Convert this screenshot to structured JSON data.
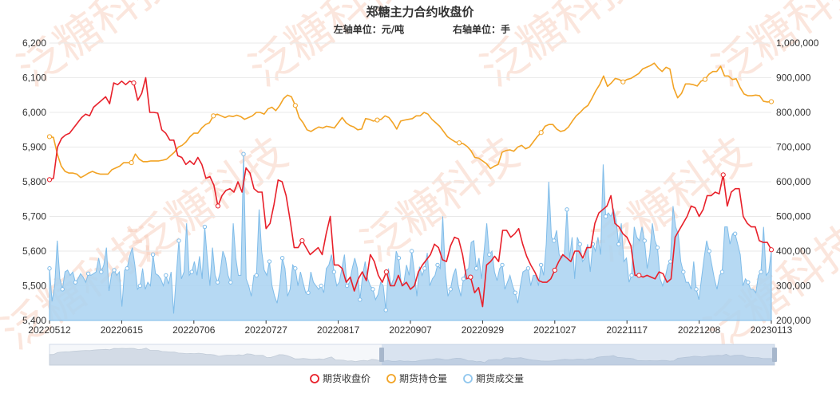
{
  "chart_data": {
    "type": "line",
    "title": "郑糖主力合约收盘价",
    "subtitle_left": "左轴单位：元/吨",
    "subtitle_right": "右轴单位：手",
    "watermark": "泛糖科技",
    "y_left": {
      "min": 5400,
      "max": 6200,
      "ticks": [
        "5,400",
        "5,500",
        "5,600",
        "5,700",
        "5,800",
        "5,900",
        "6,000",
        "6,100",
        "6,200"
      ]
    },
    "y_right": {
      "min": 200000,
      "max": 1000000,
      "ticks": [
        "200,000",
        "300,000",
        "400,000",
        "500,000",
        "600,000",
        "700,000",
        "800,000",
        "900,000",
        "1,000,000"
      ]
    },
    "x_labels": [
      "20220512",
      "20220615",
      "20220706",
      "20220727",
      "20220817",
      "20220907",
      "20220929",
      "20221027",
      "20221117",
      "20221208",
      "20230113"
    ],
    "legend": [
      {
        "name": "期货收盘价",
        "color": "#e8202a"
      },
      {
        "name": "期货持仓量",
        "color": "#f2a324"
      },
      {
        "name": "期货成交量",
        "color": "#8fc6ee"
      }
    ],
    "colors": {
      "price": "#e8202a",
      "oi": "#f2a324",
      "volume_fill": "#a9d2f1",
      "volume_line": "#7fbce9"
    },
    "series": [
      {
        "name": "期货收盘价",
        "axis": "left",
        "values": [
          5806,
          5810,
          5900,
          5925,
          5935,
          5940,
          5955,
          5970,
          5985,
          5995,
          5990,
          6015,
          6025,
          6035,
          6045,
          6025,
          6085,
          6080,
          6090,
          6080,
          6090,
          6085,
          6035,
          6055,
          6100,
          6000,
          6000,
          5998,
          5950,
          5940,
          5920,
          5920,
          5875,
          5870,
          5850,
          5860,
          5850,
          5870,
          5850,
          5810,
          5815,
          5790,
          5730,
          5760,
          5775,
          5780,
          5770,
          5800,
          5770,
          5840,
          5825,
          5780,
          5770,
          5770,
          5665,
          5680,
          5735,
          5805,
          5800,
          5760,
          5690,
          5610,
          5610,
          5630,
          5610,
          5590,
          5600,
          5610,
          5590,
          5650,
          5700,
          5560,
          5560,
          5550,
          5510,
          5525,
          5485,
          5520,
          5540,
          5515,
          5590,
          5570,
          5530,
          5510,
          5540,
          5500,
          5500,
          5530,
          5500,
          5510,
          5490,
          5500,
          5540,
          5560,
          5575,
          5590,
          5620,
          5610,
          5575,
          5570,
          5615,
          5640,
          5635,
          5590,
          5520,
          5525,
          5480,
          5495,
          5440,
          5560,
          5570,
          5585,
          5570,
          5660,
          5660,
          5640,
          5650,
          5665,
          5620,
          5585,
          5560,
          5540,
          5515,
          5510,
          5510,
          5520,
          5545,
          5570,
          5590,
          5580,
          5570,
          5600,
          5600,
          5580,
          5610,
          5610,
          5680,
          5710,
          5720,
          5730,
          5760,
          5680,
          5670,
          5650,
          5640,
          5615,
          5530,
          5530,
          5525,
          5530,
          5525,
          5520,
          5540,
          5535,
          5510,
          5520,
          5640,
          5660,
          5680,
          5700,
          5730,
          5725,
          5700,
          5720,
          5760,
          5760,
          5770,
          5765,
          5820,
          5730,
          5770,
          5780,
          5780,
          5700,
          5680,
          5670,
          5670,
          5630,
          5625,
          5625,
          5604
        ]
      },
      {
        "name": "期货持仓量",
        "axis": "right",
        "values": [
          730000,
          728000,
          680000,
          645000,
          630000,
          625000,
          625000,
          622000,
          612000,
          618000,
          625000,
          630000,
          625000,
          622000,
          622000,
          622000,
          635000,
          640000,
          645000,
          655000,
          655000,
          655000,
          680000,
          665000,
          658000,
          658000,
          660000,
          660000,
          660000,
          662000,
          665000,
          675000,
          685000,
          700000,
          705000,
          715000,
          730000,
          740000,
          740000,
          755000,
          765000,
          770000,
          790000,
          795000,
          790000,
          785000,
          790000,
          788000,
          792000,
          788000,
          780000,
          785000,
          790000,
          800000,
          800000,
          795000,
          810000,
          815000,
          805000,
          820000,
          840000,
          850000,
          845000,
          820000,
          785000,
          770000,
          750000,
          745000,
          752000,
          758000,
          755000,
          760000,
          758000,
          755000,
          770000,
          785000,
          770000,
          762000,
          758000,
          750000,
          752000,
          782000,
          780000,
          775000,
          778000,
          780000,
          790000,
          785000,
          770000,
          752000,
          775000,
          778000,
          780000,
          782000,
          790000,
          790000,
          800000,
          795000,
          780000,
          770000,
          760000,
          745000,
          730000,
          722000,
          715000,
          712000,
          710000,
          702000,
          690000,
          670000,
          668000,
          660000,
          652000,
          638000,
          645000,
          650000,
          685000,
          690000,
          692000,
          688000,
          700000,
          705000,
          695000,
          700000,
          715000,
          730000,
          742000,
          760000,
          765000,
          765000,
          752000,
          745000,
          748000,
          758000,
          775000,
          790000,
          800000,
          812000,
          820000,
          840000,
          862000,
          880000,
          905000,
          875000,
          885000,
          898000,
          895000,
          888000,
          895000,
          898000,
          905000,
          912000,
          925000,
          930000,
          935000,
          942000,
          928000,
          918000,
          930000,
          925000,
          870000,
          842000,
          855000,
          882000,
          882000,
          880000,
          876000,
          890000,
          895000,
          910000,
          918000,
          918000,
          933000,
          905000,
          905000,
          895000,
          897000,
          872000,
          853000,
          848000,
          848000,
          850000,
          848000,
          832000,
          830000,
          831000
        ]
      },
      {
        "name": "期货成交量",
        "axis": "right",
        "values": [
          350000,
          255000,
          300000,
          430000,
          320000,
          290000,
          340000,
          345000,
          330000,
          340000,
          310000,
          320000,
          335000,
          325000,
          310000,
          335000,
          330000,
          335000,
          340000,
          380000,
          340000,
          360000,
          410000,
          285000,
          335000,
          345000,
          330000,
          340000,
          240000,
          345000,
          350000,
          385000,
          410000,
          360000,
          290000,
          300000,
          350000,
          290000,
          310000,
          300000,
          390000,
          335000,
          330000,
          320000,
          300000,
          330000,
          305000,
          340000,
          220000,
          330000,
          430000,
          320000,
          340000,
          480000,
          330000,
          340000,
          370000,
          330000,
          385000,
          320000,
          470000,
          380000,
          300000,
          410000,
          330000,
          310000,
          340000,
          400000,
          380000,
          330000,
          310000,
          480000,
          380000,
          330000,
          330000,
          680000,
          320000,
          300000,
          270000,
          330000,
          330000,
          520000,
          400000,
          345000,
          330000,
          370000,
          300000,
          270000,
          250000,
          300000,
          380000,
          350000,
          270000,
          290000,
          360000,
          350000,
          300000,
          340000,
          310000,
          280000,
          280000,
          340000,
          310000,
          300000,
          290000,
          300000,
          280000,
          350000,
          360000,
          390000,
          340000,
          300000,
          310000,
          350000,
          390000,
          300000,
          310000,
          350000,
          380000,
          350000,
          260000,
          330000,
          370000,
          320000,
          300000,
          290000,
          260000,
          275000,
          310000,
          300000,
          230000,
          350000,
          300000,
          320000,
          400000,
          380000,
          300000,
          310000,
          360000,
          330000,
          400000,
          340000,
          270000,
          355000,
          330000,
          350000,
          395000,
          300000,
          320000,
          330000,
          360000,
          350000,
          500000,
          340000,
          270000,
          290000,
          330000,
          350000,
          300000,
          270000,
          320000,
          345000,
          350000,
          425000,
          430000,
          350000,
          380000,
          320000,
          400000,
          480000,
          390000,
          400000,
          340000,
          315000,
          350000,
          360000,
          290000,
          310000,
          330000,
          300000,
          280000,
          250000,
          300000,
          340000,
          345000,
          350000,
          300000,
          330000,
          330000,
          300000,
          360000,
          330000,
          420000,
          600000,
          440000,
          430000,
          460000,
          390000,
          380000,
          390000,
          520000,
          380000,
          440000,
          320000,
          440000,
          420000,
          370000,
          380000,
          420000,
          340000,
          420000,
          400000,
          440000,
          390000,
          650000,
          500000,
          510000,
          500000,
          520000,
          490000,
          420000,
          480000,
          370000,
          380000,
          310000,
          330000,
          470000,
          440000,
          430000,
          470000,
          430000,
          350000,
          390000,
          480000,
          430000,
          410000,
          320000,
          300000,
          325000,
          360000,
          370000,
          530000,
          470000,
          450000,
          370000,
          340000,
          310000,
          310000,
          290000,
          370000,
          290000,
          260000,
          320000,
          380000,
          430000,
          400000,
          360000,
          320000,
          290000,
          330000,
          340000,
          470000,
          470000,
          420000,
          450000,
          450000,
          420000,
          390000,
          300000,
          320000,
          310000,
          290000,
          290000,
          280000,
          330000,
          340000,
          470000,
          330000,
          340000,
          400000
        ]
      }
    ]
  }
}
